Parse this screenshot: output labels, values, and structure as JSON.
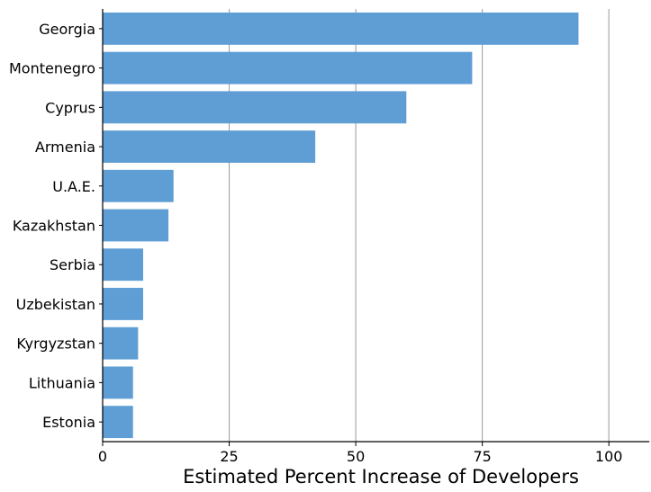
{
  "chart_data": {
    "type": "bar",
    "orientation": "horizontal",
    "title": "",
    "xlabel": "Estimated Percent Increase of Developers",
    "ylabel": "",
    "categories": [
      "Georgia",
      "Montenegro",
      "Cyprus",
      "Armenia",
      "U.A.E.",
      "Kazakhstan",
      "Serbia",
      "Uzbekistan",
      "Kyrgyzstan",
      "Lithuania",
      "Estonia"
    ],
    "values": [
      94,
      73,
      60,
      42,
      14,
      13,
      8,
      8,
      7,
      6,
      6
    ],
    "xlim": [
      0,
      108
    ],
    "xticks": [
      0,
      25,
      50,
      75,
      100
    ],
    "xtick_labels": [
      "0",
      "25",
      "50",
      "75",
      "100"
    ],
    "grid": "vertical",
    "legend": "none",
    "bar_color": "#5f9ed4",
    "grid_color": "#999999"
  }
}
